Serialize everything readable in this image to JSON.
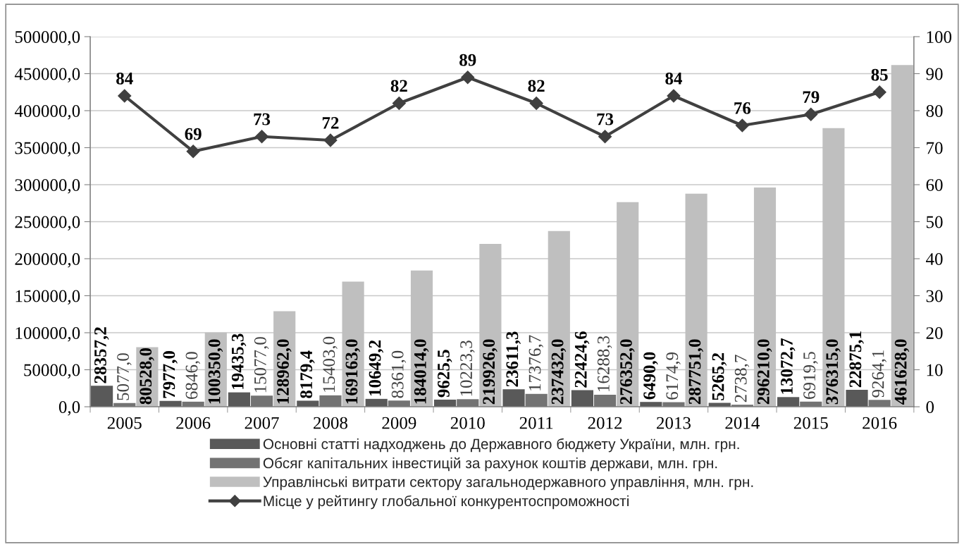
{
  "chart_data": {
    "type": "bar",
    "categories": [
      "2005",
      "2006",
      "2007",
      "2008",
      "2009",
      "2010",
      "2011",
      "2012",
      "2013",
      "2014",
      "2015",
      "2016"
    ],
    "series": [
      {
        "name": "Основні статті надходжень до Державного бюджету України, млн. грн.",
        "color": "#595959",
        "values": [
          28357.2,
          7977.0,
          19435.3,
          8179.4,
          10649.2,
          9625.5,
          23611.3,
          22424.6,
          6490.0,
          5265.2,
          13072.7,
          22875.1
        ],
        "value_labels": [
          "28357,2",
          "7977,0",
          "19435,3",
          "8179,4",
          "10649,2",
          "9625,5",
          "23611,3",
          "22424,6",
          "6490,0",
          "5265,2",
          "13072,7",
          "22875,1"
        ]
      },
      {
        "name": "Обсяг капітальних інвестицій за рахунок коштів держави, млн. грн.",
        "color": "#737373",
        "values": [
          5077.0,
          6846.0,
          15077.0,
          15403.0,
          8361.0,
          10223.3,
          17376.7,
          16288.3,
          6174.9,
          2738.7,
          6919.5,
          9264.1
        ],
        "value_labels": [
          "5077,0",
          "6846,0",
          "15077,0",
          "15403,0",
          "8361,0",
          "10223,3",
          "17376,7",
          "16288,3",
          "6174,9",
          "2738,7",
          "6919,5",
          "9264,1"
        ]
      },
      {
        "name": "Управлінські витрати сектору загальнодержавного управління, млн. грн.",
        "color": "#bfbfbf",
        "values": [
          80528.0,
          100350.0,
          128962.0,
          169163.0,
          184014.0,
          219926.0,
          237432.0,
          276352.0,
          287751.0,
          296210.0,
          376315.0,
          461628.0
        ],
        "value_labels": [
          "80528,0",
          "100350,0",
          "128962,0",
          "169163,0",
          "184014,0",
          "219926,0",
          "237432,0",
          "276352,0",
          "287751,0",
          "296210,0",
          "376315,0",
          "461628,0"
        ]
      },
      {
        "name": "Місце у рейтингу глобальної конкурентоспроможності",
        "type": "line",
        "axis": "y2",
        "color": "#404040",
        "marker": "diamond",
        "line_style": "solid",
        "values": [
          84,
          69,
          73,
          72,
          82,
          89,
          82,
          73,
          84,
          76,
          79,
          85
        ],
        "value_labels": [
          "84",
          "69",
          "73",
          "72",
          "82",
          "89",
          "82",
          "73",
          "84",
          "76",
          "79",
          "85"
        ]
      }
    ],
    "ylim": [
      0,
      500000
    ],
    "yticks": [
      {
        "value": 0,
        "label": "0,0"
      },
      {
        "value": 50000,
        "label": "50000,0"
      },
      {
        "value": 100000,
        "label": "100000,0"
      },
      {
        "value": 150000,
        "label": "150000,0"
      },
      {
        "value": 200000,
        "label": "200000,0"
      },
      {
        "value": 250000,
        "label": "250000,0"
      },
      {
        "value": 300000,
        "label": "300000,0"
      },
      {
        "value": 350000,
        "label": "350000,0"
      },
      {
        "value": 400000,
        "label": "400000,0"
      },
      {
        "value": 450000,
        "label": "450000,0"
      },
      {
        "value": 500000,
        "label": "500000,0"
      }
    ],
    "y2lim": [
      0,
      100
    ],
    "y2ticks": [
      0,
      10,
      20,
      30,
      40,
      50,
      60,
      70,
      80,
      90,
      100
    ],
    "grid": "y",
    "legend": "bottom"
  }
}
